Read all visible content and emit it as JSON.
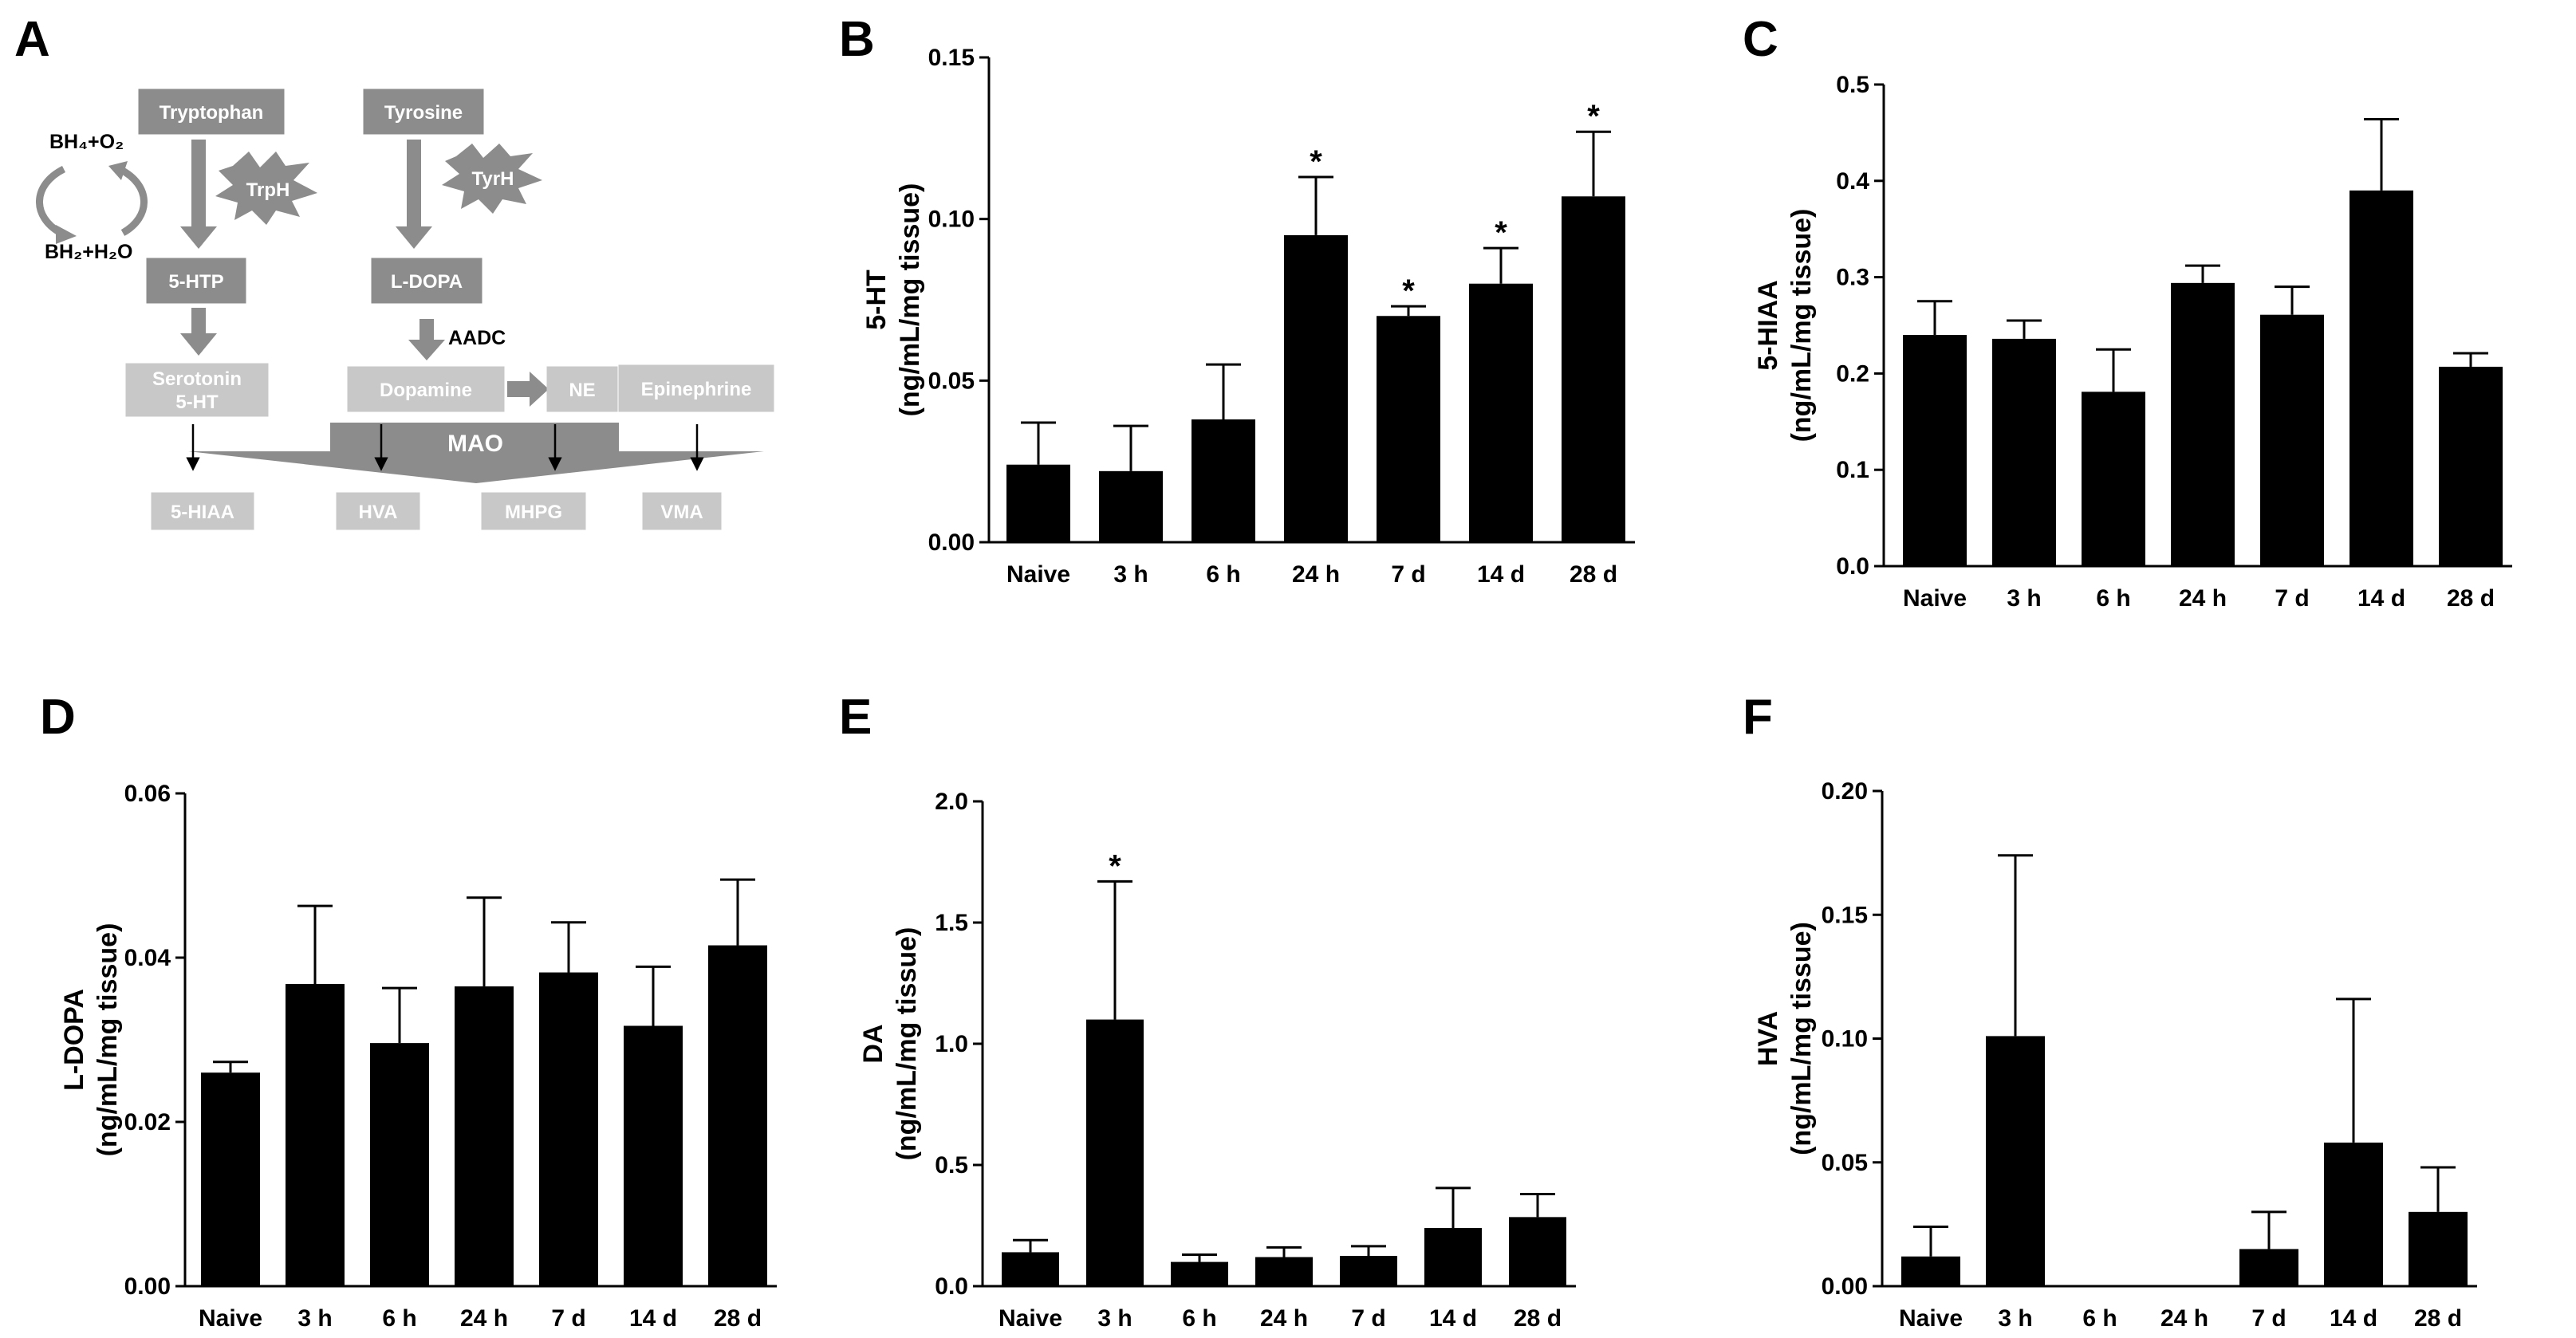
{
  "colors": {
    "bar": "#000000",
    "enzyme": "#8c8c8c",
    "metabolite": "#c8c8c8",
    "arrow": "#8c8c8c"
  },
  "panel_a": {
    "letter": "A",
    "tryptophan": "Tryptophan",
    "tyrosine": "Tyrosine",
    "trph": "TrpH",
    "tyrh": "TyrH",
    "cofactor_top": "BH₄+O₂",
    "cofactor_bottom": "BH₂+H₂O",
    "htp": "5-HTP",
    "ldopa": "L-DOPA",
    "aadc": "AADC",
    "serotonin_1": "Serotonin",
    "serotonin_2": "5-HT",
    "dopamine": "Dopamine",
    "ne": "NE",
    "epinephrine": "Epinephrine",
    "mao": "MAO",
    "hiaa": "5-HIAA",
    "hva": "HVA",
    "mhpg": "MHPG",
    "vma": "VMA"
  },
  "chart_data": [
    {
      "panel": "B",
      "type": "bar",
      "categories": [
        "Naive",
        "3 h",
        "6 h",
        "24 h",
        "7 d",
        "14 d",
        "28 d"
      ],
      "values": [
        0.024,
        0.022,
        0.038,
        0.095,
        0.07,
        0.08,
        0.107
      ],
      "errors": [
        0.013,
        0.014,
        0.017,
        0.018,
        0.003,
        0.011,
        0.02
      ],
      "significant": [
        false,
        false,
        false,
        true,
        true,
        true,
        true
      ],
      "sig_marker": "*",
      "ylabel_1": "5-HT",
      "ylabel_2": "(ng/mL/mg tissue)",
      "ylim": [
        0,
        0.15
      ],
      "yticks": [
        0.0,
        0.05,
        0.1,
        0.15
      ],
      "ytick_labels": [
        "0.00",
        "0.05",
        "0.10",
        "0.15"
      ]
    },
    {
      "panel": "C",
      "type": "bar",
      "categories": [
        "Naive",
        "3 h",
        "6 h",
        "24 h",
        "7 d",
        "14 d",
        "28 d"
      ],
      "values": [
        0.24,
        0.236,
        0.181,
        0.294,
        0.261,
        0.39,
        0.207
      ],
      "errors": [
        0.035,
        0.019,
        0.044,
        0.018,
        0.029,
        0.074,
        0.014
      ],
      "significant": [
        false,
        false,
        false,
        false,
        false,
        false,
        false
      ],
      "sig_marker": "*",
      "ylabel_1": "5-HIAA",
      "ylabel_2": "(ng/mL/mg tissue)",
      "ylim": [
        0,
        0.5
      ],
      "yticks": [
        0.0,
        0.1,
        0.2,
        0.3,
        0.4,
        0.5
      ],
      "ytick_labels": [
        "0.0",
        "0.1",
        "0.2",
        "0.3",
        "0.4",
        "0.5"
      ]
    },
    {
      "panel": "D",
      "type": "bar",
      "categories": [
        "Naive",
        "3 h",
        "6 h",
        "24 h",
        "7 d",
        "14 d",
        "28 d"
      ],
      "values": [
        0.026,
        0.0368,
        0.0296,
        0.0365,
        0.0382,
        0.0317,
        0.0415
      ],
      "errors": [
        0.0013,
        0.0095,
        0.0067,
        0.0108,
        0.0061,
        0.0072,
        0.008
      ],
      "significant": [
        false,
        false,
        false,
        false,
        false,
        false,
        false
      ],
      "sig_marker": "*",
      "ylabel_1": "L-DOPA",
      "ylabel_2": "(ng/mL/mg tissue)",
      "ylim": [
        0,
        0.06
      ],
      "yticks": [
        0.0,
        0.02,
        0.04,
        0.06
      ],
      "ytick_labels": [
        "0.00",
        "0.02",
        "0.04",
        "0.06"
      ]
    },
    {
      "panel": "E",
      "type": "bar",
      "categories": [
        "Naive",
        "3 h",
        "6 h",
        "24 h",
        "7 d",
        "14 d",
        "28 d"
      ],
      "values": [
        0.14,
        1.1,
        0.1,
        0.12,
        0.125,
        0.24,
        0.285
      ],
      "errors": [
        0.05,
        0.57,
        0.03,
        0.04,
        0.04,
        0.165,
        0.095
      ],
      "significant": [
        false,
        true,
        false,
        false,
        false,
        false,
        false
      ],
      "sig_marker": "*",
      "ylabel_1": "DA",
      "ylabel_2": "(ng/mL/mg tissue)",
      "ylim": [
        0,
        2.0
      ],
      "yticks": [
        0.0,
        0.5,
        1.0,
        1.5,
        2.0
      ],
      "ytick_labels": [
        "0.0",
        "0.5",
        "1.0",
        "1.5",
        "2.0"
      ]
    },
    {
      "panel": "F",
      "type": "bar",
      "categories": [
        "Naive",
        "3 h",
        "6 h",
        "24 h",
        "7 d",
        "14 d",
        "28 d"
      ],
      "values": [
        0.012,
        0.101,
        0.0,
        0.0,
        0.015,
        0.058,
        0.03
      ],
      "errors": [
        0.012,
        0.073,
        0.0,
        0.0,
        0.015,
        0.058,
        0.018
      ],
      "significant": [
        false,
        false,
        false,
        false,
        false,
        false,
        false
      ],
      "sig_marker": "*",
      "ylabel_1": "HVA",
      "ylabel_2": "(ng/mL/mg tissue)",
      "ylim": [
        0,
        0.2
      ],
      "yticks": [
        0.0,
        0.05,
        0.1,
        0.15,
        0.2
      ],
      "ytick_labels": [
        "0.00",
        "0.05",
        "0.10",
        "0.15",
        "0.20"
      ]
    }
  ]
}
